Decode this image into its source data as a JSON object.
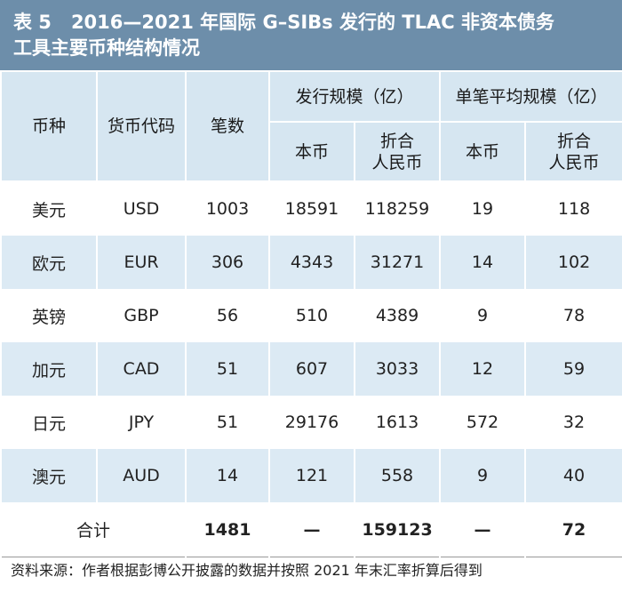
{
  "title": {
    "label": "表 5",
    "line1": "2016—2021 年国际 G–SIBs 发行的 TLAC 非资本债务",
    "line2": "工具主要币种结构情况"
  },
  "headers": {
    "currency": "币种",
    "code": "货币代码",
    "count": "笔数",
    "issue_scale": "发行规模（亿）",
    "avg_scale": "单笔平均规模（亿）",
    "local": "本币",
    "rmb": "折合\n人民币",
    "local2": "本币",
    "rmb2": "折合\n人民币"
  },
  "rows": [
    {
      "currency": "美元",
      "code": "USD",
      "count": "1003",
      "issue_local": "18591",
      "issue_rmb": "118259",
      "avg_local": "19",
      "avg_rmb": "118"
    },
    {
      "currency": "欧元",
      "code": "EUR",
      "count": "306",
      "issue_local": "4343",
      "issue_rmb": "31271",
      "avg_local": "14",
      "avg_rmb": "102"
    },
    {
      "currency": "英镑",
      "code": "GBP",
      "count": "56",
      "issue_local": "510",
      "issue_rmb": "4389",
      "avg_local": "9",
      "avg_rmb": "78"
    },
    {
      "currency": "加元",
      "code": "CAD",
      "count": "51",
      "issue_local": "607",
      "issue_rmb": "3033",
      "avg_local": "12",
      "avg_rmb": "59"
    },
    {
      "currency": "日元",
      "code": "JPY",
      "count": "51",
      "issue_local": "29176",
      "issue_rmb": "1613",
      "avg_local": "572",
      "avg_rmb": "32"
    },
    {
      "currency": "澳元",
      "code": "AUD",
      "count": "14",
      "issue_local": "121",
      "issue_rmb": "558",
      "avg_local": "9",
      "avg_rmb": "40"
    }
  ],
  "total": {
    "label": "合计",
    "count": "1481",
    "issue_local": "—",
    "issue_rmb": "159123",
    "avg_local": "—",
    "avg_rmb": "72"
  },
  "source": "资料来源：作者根据彭博公开披露的数据并按照 2021 年末汇率折算后得到",
  "colors": {
    "title_bg": "#6d8eaa",
    "header_bg": "#d6e6f1",
    "stripe_bg": "#dceaf4"
  }
}
